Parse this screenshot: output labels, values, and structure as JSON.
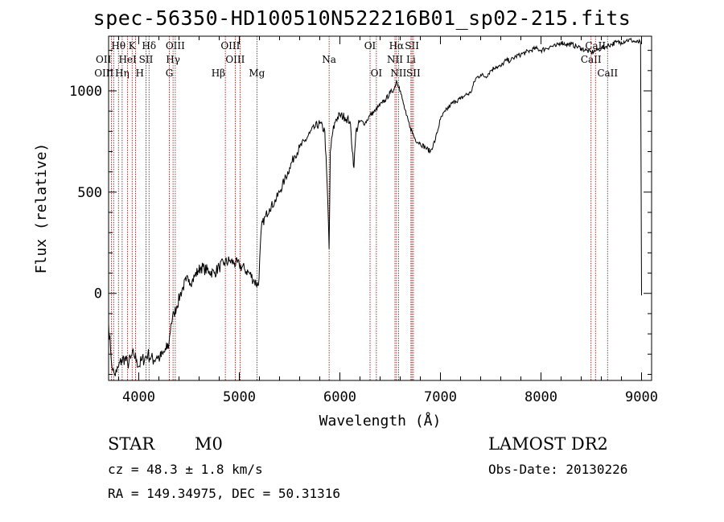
{
  "chart_data": {
    "type": "line",
    "title": "spec-56350-HD100510N522216B01_sp02-215.fits",
    "xlabel": "Wavelength (Å)",
    "ylabel": "Flux (relative)",
    "xlim": [
      3700,
      9100
    ],
    "ylim": [
      -430,
      1270
    ],
    "xticks": [
      4000,
      5000,
      6000,
      7000,
      8000,
      9000
    ],
    "yticks": [
      0,
      500,
      1000
    ],
    "grid": false,
    "series": [
      {
        "x": [
          3700,
          3720,
          3740,
          3760,
          3780,
          3800,
          3830,
          3860,
          3890,
          3920,
          3950,
          3980,
          4000,
          4030,
          4060,
          4090,
          4120,
          4150,
          4180,
          4210,
          4240,
          4270,
          4300,
          4320,
          4350,
          4380,
          4410,
          4440,
          4470,
          4500,
          4530,
          4560,
          4590,
          4620,
          4650,
          4700,
          4750,
          4800,
          4850,
          4900,
          4950,
          5000,
          5050,
          5100,
          5150,
          5190,
          5220,
          5260,
          5300,
          5350,
          5400,
          5450,
          5500,
          5550,
          5600,
          5650,
          5700,
          5750,
          5800,
          5850,
          5880,
          5893,
          5905,
          5930,
          5960,
          6000,
          6050,
          6100,
          6140,
          6160,
          6200,
          6250,
          6300,
          6350,
          6380,
          6420,
          6460,
          6500,
          6540,
          6563,
          6590,
          6620,
          6660,
          6700,
          6750,
          6800,
          6850,
          6900,
          6950,
          7000,
          7050,
          7100,
          7150,
          7200,
          7250,
          7300,
          7350,
          7400,
          7450,
          7500,
          7550,
          7600,
          7650,
          7700,
          7750,
          7800,
          7850,
          7900,
          7950,
          8000,
          8050,
          8100,
          8150,
          8200,
          8250,
          8300,
          8350,
          8400,
          8450,
          8500,
          8550,
          8600,
          8650,
          8700,
          8750,
          8800,
          8850,
          8900,
          8950,
          8990,
          9000
        ],
        "values": [
          -150,
          -280,
          -380,
          -400,
          -390,
          -360,
          -330,
          -320,
          -350,
          -320,
          -300,
          -330,
          -360,
          -330,
          -320,
          -300,
          -320,
          -330,
          -310,
          -320,
          -300,
          -280,
          -250,
          -150,
          -100,
          -60,
          -10,
          30,
          60,
          70,
          60,
          90,
          110,
          130,
          120,
          110,
          100,
          130,
          150,
          160,
          150,
          140,
          120,
          100,
          60,
          40,
          330,
          380,
          420,
          450,
          500,
          560,
          620,
          680,
          720,
          750,
          790,
          820,
          840,
          800,
          450,
          220,
          700,
          800,
          860,
          880,
          870,
          850,
          620,
          800,
          850,
          840,
          880,
          900,
          920,
          940,
          960,
          990,
          1010,
          1050,
          1020,
          960,
          880,
          820,
          760,
          740,
          720,
          700,
          760,
          860,
          900,
          930,
          950,
          960,
          980,
          990,
          1060,
          1080,
          1070,
          1100,
          1120,
          1120,
          1150,
          1150,
          1170,
          1180,
          1190,
          1200,
          1210,
          1200,
          1210,
          1220,
          1220,
          1240,
          1230,
          1230,
          1220,
          1210,
          1200,
          1190,
          1200,
          1210,
          1220,
          1230,
          1240,
          1240,
          1250,
          1250,
          1240,
          1240,
          -10
        ]
      }
    ],
    "lines": [
      {
        "w": 3727,
        "label": "OII",
        "row": 1,
        "anchor": "end"
      },
      {
        "w": 3750,
        "label": "OIII",
        "row": 2,
        "anchor": "end"
      },
      {
        "w": 3798,
        "label": "Hθ",
        "row": 0,
        "anchor": "middle"
      },
      {
        "w": 3835,
        "label": "Hη",
        "row": 2,
        "anchor": "middle"
      },
      {
        "w": 3889,
        "label": "HeI",
        "row": 1,
        "anchor": "middle"
      },
      {
        "w": 3934,
        "label": "K",
        "row": 0,
        "anchor": "middle"
      },
      {
        "w": 3968,
        "label": "H",
        "row": 2,
        "anchor": "start"
      },
      {
        "w": 4072,
        "label": "SII",
        "row": 1,
        "anchor": "middle"
      },
      {
        "w": 4102,
        "label": "Hδ",
        "row": 0,
        "anchor": "middle"
      },
      {
        "w": 4304,
        "label": "G",
        "row": 2,
        "anchor": "middle"
      },
      {
        "w": 4341,
        "label": "Hγ",
        "row": 1,
        "anchor": "middle"
      },
      {
        "w": 4363,
        "label": "OIII",
        "row": 0,
        "anchor": "middle"
      },
      {
        "w": 4861,
        "label": "Hβ",
        "row": 2,
        "anchor": "end"
      },
      {
        "w": 4959,
        "label": "OIII",
        "row": 1,
        "anchor": "middle"
      },
      {
        "w": 5007,
        "label": "OIII",
        "row": 0,
        "anchor": "end"
      },
      {
        "w": 5175,
        "label": "Mg",
        "row": 2,
        "anchor": "middle"
      },
      {
        "w": 5893,
        "label": "Na",
        "row": 1,
        "anchor": "middle"
      },
      {
        "w": 6300,
        "label": "OI",
        "row": 0,
        "anchor": "middle"
      },
      {
        "w": 6363,
        "label": "OI",
        "row": 2,
        "anchor": "middle"
      },
      {
        "w": 6548,
        "label": "NII",
        "row": 1,
        "anchor": "middle"
      },
      {
        "w": 6563,
        "label": "Hα",
        "row": 0,
        "anchor": "middle"
      },
      {
        "w": 6583,
        "label": "NII",
        "row": 2,
        "anchor": "middle"
      },
      {
        "w": 6707,
        "label": "Li",
        "row": 1,
        "anchor": "middle"
      },
      {
        "w": 6717,
        "label": "SII",
        "row": 0,
        "anchor": "middle"
      },
      {
        "w": 6731,
        "label": "SII",
        "row": 2,
        "anchor": "middle"
      },
      {
        "w": 8498,
        "label": "CaII",
        "row": 1,
        "anchor": "middle"
      },
      {
        "w": 8542,
        "label": "CaII",
        "row": 0,
        "anchor": "middle"
      },
      {
        "w": 8662,
        "label": "CaII",
        "row": 2,
        "anchor": "middle"
      }
    ],
    "line_color": "#8b0000"
  },
  "info": {
    "object_class": "STAR",
    "subclass": "M0",
    "survey": "LAMOST DR2",
    "cz": "cz = 48.3 ± 1.8 km/s",
    "obs_date": "Obs-Date: 20130226",
    "coords": "RA = 149.34975, DEC =  50.31316"
  }
}
